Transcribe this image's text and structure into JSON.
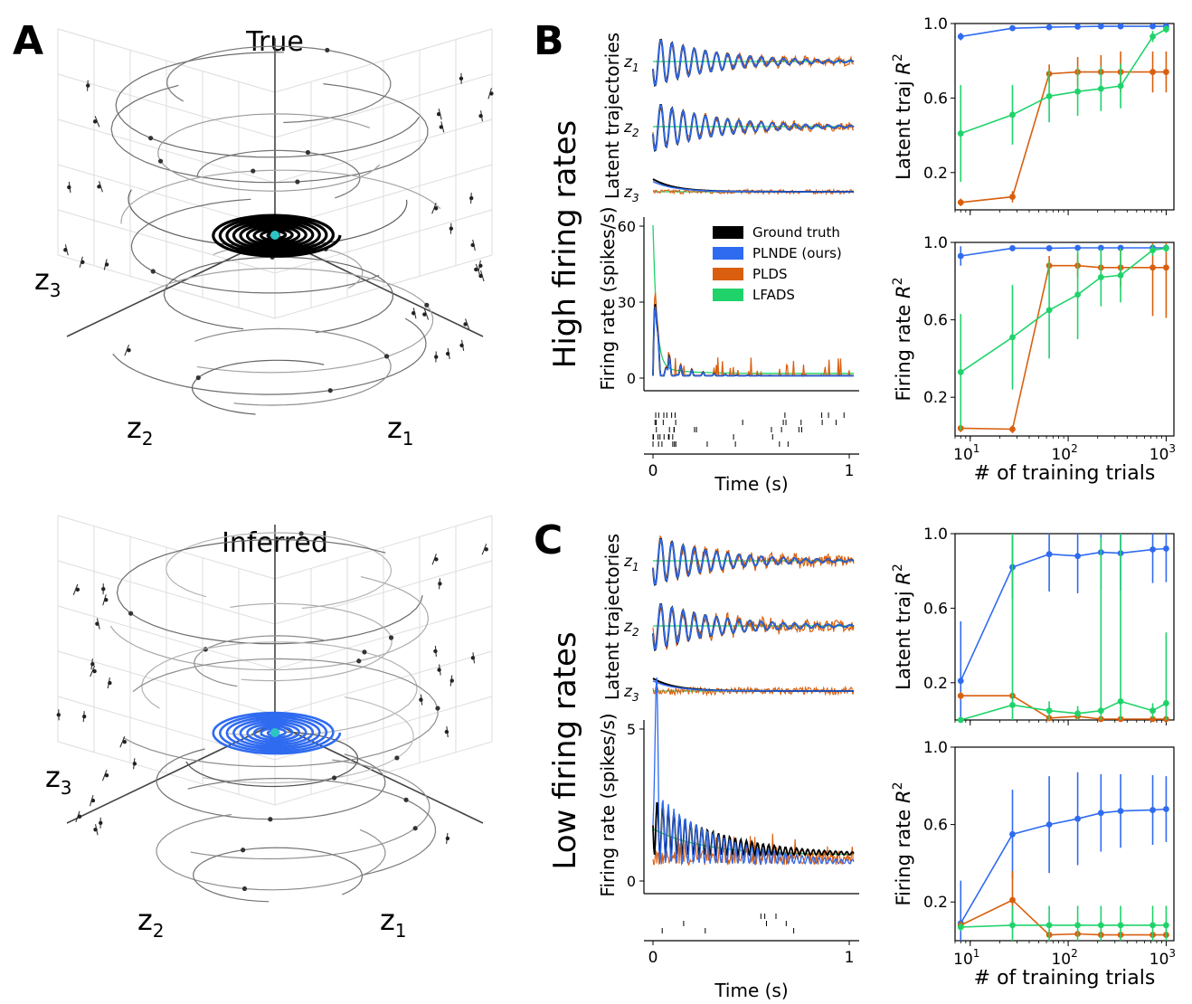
{
  "panels": {
    "A": {
      "letter": "A",
      "top_title": "True",
      "bottom_title": "Inferred",
      "axis_labels": {
        "z1": "z",
        "z1_sub": "1",
        "z2": "z",
        "z2_sub": "2",
        "z3": "z",
        "z3_sub": "3"
      },
      "colors": {
        "true_traj": "#000000",
        "inferred_traj": "#2f6bf0",
        "fixed_point": "#2ec4c4",
        "flow": "#555555"
      }
    },
    "B": {
      "letter": "B",
      "row_label": "High firing rates"
    },
    "C": {
      "letter": "C",
      "row_label": "Low firing rates"
    }
  },
  "legend": [
    {
      "label": "Ground truth",
      "color": "#000000"
    },
    {
      "label": "PLNDE (ours)",
      "color": "#2f6bf0"
    },
    {
      "label": "PLDS",
      "color": "#d95f0e"
    },
    {
      "label": "LFADS",
      "color": "#1fd36a"
    }
  ],
  "traces": {
    "latent_ylabel": "Latent trajectories",
    "latent_labels": [
      {
        "v": "z",
        "sub": "1"
      },
      {
        "v": "z",
        "sub": "2"
      },
      {
        "v": "z",
        "sub": "3"
      }
    ],
    "rate_ylabel": "Firing rate (spikes/s)",
    "time_label": "Time (s)",
    "time_ticks": [
      "0",
      "1"
    ],
    "high_rate_ticks": [
      "0",
      "30",
      "60"
    ],
    "low_rate_ticks": [
      "0",
      "5"
    ]
  },
  "chart_data": [
    {
      "type": "line",
      "id": "B-latent",
      "title": "",
      "xlabel": "# of training trials",
      "ylabel": "Latent traj R2",
      "ylabel_base": "Latent traj ",
      "ylabel_var": "R",
      "ylabel_sup": "2",
      "xscale": "log",
      "xlim": [
        7,
        1200
      ],
      "ylim": [
        0,
        1.0
      ],
      "xticks": [
        {
          "v": 10,
          "b": "10",
          "e": "1"
        },
        {
          "v": 100,
          "b": "10",
          "e": "2"
        },
        {
          "v": 1000,
          "b": "10",
          "e": "3"
        }
      ],
      "yticks": [
        {
          "v": 0.2,
          "l": "0.2"
        },
        {
          "v": 0.6,
          "l": "0.6"
        },
        {
          "v": 1.0,
          "l": "1.0"
        }
      ],
      "x": [
        8,
        27,
        64,
        125,
        216,
        343,
        729,
        1000
      ],
      "series": [
        {
          "name": "PLNDE (ours)",
          "color": "#2f6bf0",
          "values": [
            0.93,
            0.975,
            0.98,
            0.983,
            0.985,
            0.985,
            0.985,
            0.985
          ],
          "err": [
            0.02,
            0.01,
            0.008,
            0.006,
            0.005,
            0.005,
            0.005,
            0.005
          ]
        },
        {
          "name": "PLDS",
          "color": "#d95f0e",
          "values": [
            0.04,
            0.07,
            0.73,
            0.74,
            0.74,
            0.74,
            0.74,
            0.74
          ],
          "err": [
            0.02,
            0.03,
            0.05,
            0.08,
            0.09,
            0.11,
            0.11,
            0.11
          ]
        },
        {
          "name": "LFADS",
          "color": "#1fd36a",
          "values": [
            0.41,
            0.51,
            0.61,
            0.635,
            0.65,
            0.665,
            0.93,
            0.97
          ],
          "err": [
            0.26,
            0.16,
            0.14,
            0.13,
            0.12,
            0.12,
            0.03,
            0.02
          ]
        }
      ]
    },
    {
      "type": "line",
      "id": "B-rate",
      "title": "",
      "xlabel": "# of training trials",
      "ylabel": "Firing rate R2",
      "ylabel_base": "Firing rate ",
      "ylabel_var": "R",
      "ylabel_sup": "2",
      "xscale": "log",
      "xlim": [
        7,
        1200
      ],
      "ylim": [
        0,
        1.0
      ],
      "xticks": [
        {
          "v": 10,
          "b": "10",
          "e": "1"
        },
        {
          "v": 100,
          "b": "10",
          "e": "2"
        },
        {
          "v": 1000,
          "b": "10",
          "e": "3"
        }
      ],
      "yticks": [
        {
          "v": 0.2,
          "l": "0.2"
        },
        {
          "v": 0.6,
          "l": "0.6"
        },
        {
          "v": 1.0,
          "l": "1.0"
        }
      ],
      "x": [
        8,
        27,
        64,
        125,
        216,
        343,
        729,
        1000
      ],
      "series": [
        {
          "name": "PLNDE (ours)",
          "color": "#2f6bf0",
          "values": [
            0.93,
            0.97,
            0.97,
            0.972,
            0.972,
            0.972,
            0.972,
            0.972
          ],
          "err": [
            0.05,
            0.01,
            0.01,
            0.008,
            0.008,
            0.008,
            0.008,
            0.008
          ]
        },
        {
          "name": "PLDS",
          "color": "#d95f0e",
          "values": [
            0.04,
            0.035,
            0.88,
            0.88,
            0.87,
            0.87,
            0.87,
            0.87
          ],
          "err": [
            0.02,
            0.02,
            0.05,
            0.06,
            0.07,
            0.1,
            0.25,
            0.26
          ]
        },
        {
          "name": "LFADS",
          "color": "#1fd36a",
          "values": [
            0.33,
            0.51,
            0.65,
            0.73,
            0.82,
            0.83,
            0.96,
            0.97
          ],
          "err": [
            0.3,
            0.27,
            0.25,
            0.23,
            0.15,
            0.14,
            0.03,
            0.02
          ]
        }
      ]
    },
    {
      "type": "line",
      "id": "C-latent",
      "title": "",
      "xlabel": "# of training trials",
      "ylabel": "Latent traj R2",
      "ylabel_base": "Latent traj ",
      "ylabel_var": "R",
      "ylabel_sup": "2",
      "xscale": "log",
      "xlim": [
        7,
        1200
      ],
      "ylim": [
        0,
        1.0
      ],
      "xticks": [
        {
          "v": 10,
          "b": "10",
          "e": "1"
        },
        {
          "v": 100,
          "b": "10",
          "e": "2"
        },
        {
          "v": 1000,
          "b": "10",
          "e": "3"
        }
      ],
      "yticks": [
        {
          "v": 0.2,
          "l": "0.2"
        },
        {
          "v": 0.6,
          "l": "0.6"
        },
        {
          "v": 1.0,
          "l": "1.0"
        }
      ],
      "x": [
        8,
        27,
        64,
        125,
        216,
        343,
        729,
        1000
      ],
      "series": [
        {
          "name": "PLNDE (ours)",
          "color": "#2f6bf0",
          "values": [
            0.21,
            0.82,
            0.89,
            0.88,
            0.9,
            0.895,
            0.915,
            0.92
          ],
          "err": [
            0.32,
            0.17,
            0.2,
            0.2,
            0.2,
            0.2,
            0.18,
            0.18
          ]
        },
        {
          "name": "PLDS",
          "color": "#d95f0e",
          "values": [
            0.13,
            0.13,
            0.01,
            0.02,
            0.005,
            0.005,
            0.005,
            0.005
          ],
          "err": [
            0.02,
            0.02,
            0.01,
            0.01,
            0.005,
            0.005,
            0.005,
            0.005
          ]
        },
        {
          "name": "LFADS",
          "color": "#1fd36a",
          "values": [
            0.0,
            0.08,
            0.05,
            0.035,
            0.05,
            0.1,
            0.05,
            0.09
          ],
          "err": [
            0.01,
            0.92,
            0.05,
            0.04,
            0.93,
            0.9,
            0.04,
            0.38
          ]
        }
      ]
    },
    {
      "type": "line",
      "id": "C-rate",
      "title": "",
      "xlabel": "# of training trials",
      "ylabel": "Firing rate R2",
      "ylabel_base": "Firing rate ",
      "ylabel_var": "R",
      "ylabel_sup": "2",
      "xscale": "log",
      "xlim": [
        7,
        1200
      ],
      "ylim": [
        0,
        1.0
      ],
      "xticks": [
        {
          "v": 10,
          "b": "10",
          "e": "1"
        },
        {
          "v": 100,
          "b": "10",
          "e": "2"
        },
        {
          "v": 1000,
          "b": "10",
          "e": "3"
        }
      ],
      "yticks": [
        {
          "v": 0.2,
          "l": "0.2"
        },
        {
          "v": 0.6,
          "l": "0.6"
        },
        {
          "v": 1.0,
          "l": "1.0"
        }
      ],
      "x": [
        8,
        27,
        64,
        125,
        216,
        343,
        729,
        1000
      ],
      "series": [
        {
          "name": "PLNDE (ours)",
          "color": "#2f6bf0",
          "values": [
            0.09,
            0.55,
            0.6,
            0.63,
            0.66,
            0.67,
            0.675,
            0.68
          ],
          "err": [
            0.22,
            0.23,
            0.25,
            0.24,
            0.2,
            0.19,
            0.18,
            0.17
          ]
        },
        {
          "name": "PLDS",
          "color": "#d95f0e",
          "values": [
            0.08,
            0.21,
            0.03,
            0.035,
            0.03,
            0.03,
            0.03,
            0.03
          ],
          "err": [
            0.02,
            0.15,
            0.01,
            0.01,
            0.01,
            0.01,
            0.01,
            0.01
          ]
        },
        {
          "name": "LFADS",
          "color": "#1fd36a",
          "values": [
            0.07,
            0.08,
            0.08,
            0.08,
            0.08,
            0.08,
            0.08,
            0.08
          ],
          "err": [
            0.02,
            0.1,
            0.1,
            0.1,
            0.1,
            0.1,
            0.1,
            0.1
          ]
        }
      ]
    }
  ]
}
